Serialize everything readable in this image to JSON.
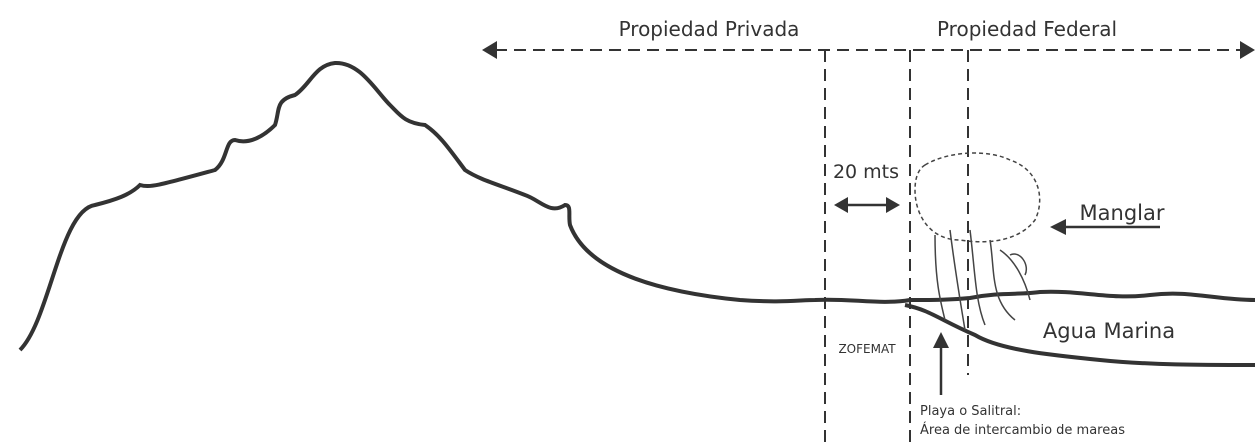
{
  "labels": {
    "private": "Propiedad Privada",
    "federal": "Propiedad Federal",
    "distance": "20 mts",
    "mangrove": "Manglar",
    "sea": "Agua Marina",
    "zofemat": "ZOFEMAT",
    "beach_1": "Playa o Salitral:",
    "beach_2": "Área de intercambio de mareas"
  }
}
